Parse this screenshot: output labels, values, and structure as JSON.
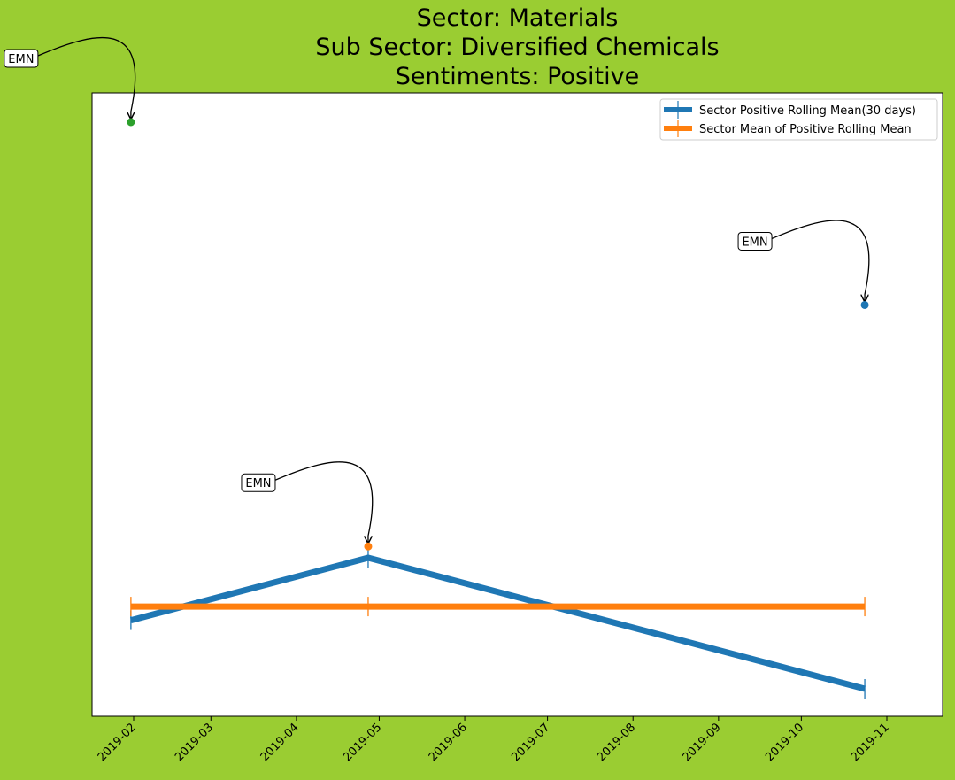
{
  "chart_data": {
    "type": "line",
    "title_lines": [
      "Sector:  Materials",
      "Sub Sector:  Diversified Chemicals",
      "Sentiments:  Positive"
    ],
    "xlabel": "",
    "ylabel": "",
    "x_ticks": [
      "2019-02",
      "2019-03",
      "2019-04",
      "2019-05",
      "2019-06",
      "2019-07",
      "2019-08",
      "2019-09",
      "2019-10",
      "2019-11"
    ],
    "y_ticks_visible": false,
    "series": [
      {
        "name": "Sector Positive Rolling Mean(30 days)",
        "color": "#1f77b4",
        "x": [
          "2019-01-31",
          "2019-04-27",
          "2019-10-24"
        ],
        "y": [
          0.1615,
          0.2667,
          0.0461
        ]
      },
      {
        "name": "Sector Mean of Positive Rolling Mean",
        "color": "#ff7f0e",
        "x": [
          "2019-01-31",
          "2019-04-27",
          "2019-10-24"
        ],
        "y": [
          0.1846,
          0.1846,
          0.1846
        ]
      }
    ],
    "annotated_points": [
      {
        "label": "EMN",
        "x": "2019-01-31",
        "y": 1.0,
        "color": "#2ca02c"
      },
      {
        "label": "EMN",
        "x": "2019-04-27",
        "y": 0.2857,
        "color": "#ff7f0e"
      },
      {
        "label": "EMN",
        "x": "2019-10-24",
        "y": 0.6923,
        "color": "#1f77b4"
      }
    ],
    "legend": "top-right",
    "grid": false
  }
}
